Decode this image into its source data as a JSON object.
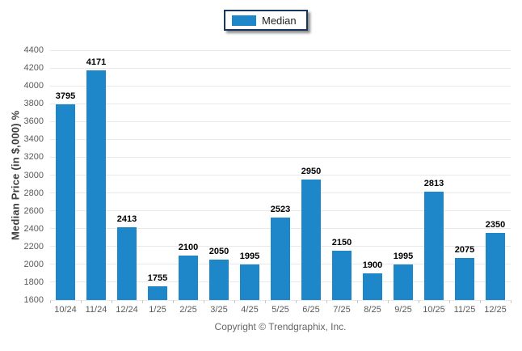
{
  "chart_data": {
    "type": "bar",
    "title": "",
    "legend": "Median",
    "legend_position": "top-center",
    "xlabel": "",
    "ylabel": "Median Price (in $,000) %",
    "categories": [
      "10/24",
      "11/24",
      "12/24",
      "1/25",
      "2/25",
      "3/25",
      "4/25",
      "5/25",
      "6/25",
      "7/25",
      "8/25",
      "9/25",
      "10/25",
      "11/25",
      "12/25"
    ],
    "values": [
      3795,
      4171,
      2413,
      1755,
      2100,
      2050,
      1995,
      2523,
      2950,
      2150,
      1900,
      1995,
      2813,
      2075,
      2350
    ],
    "ylim": [
      1600,
      4400
    ],
    "ytick_step": 200,
    "grid": "horizontal"
  },
  "footer": {
    "copyright": "Copyright © Trendgraphix, Inc."
  },
  "colors": {
    "bar": "#1e87c9",
    "legend_border": "#16365d",
    "gridline": "#e9e9e9",
    "axis_text": "#5a5a5a"
  }
}
